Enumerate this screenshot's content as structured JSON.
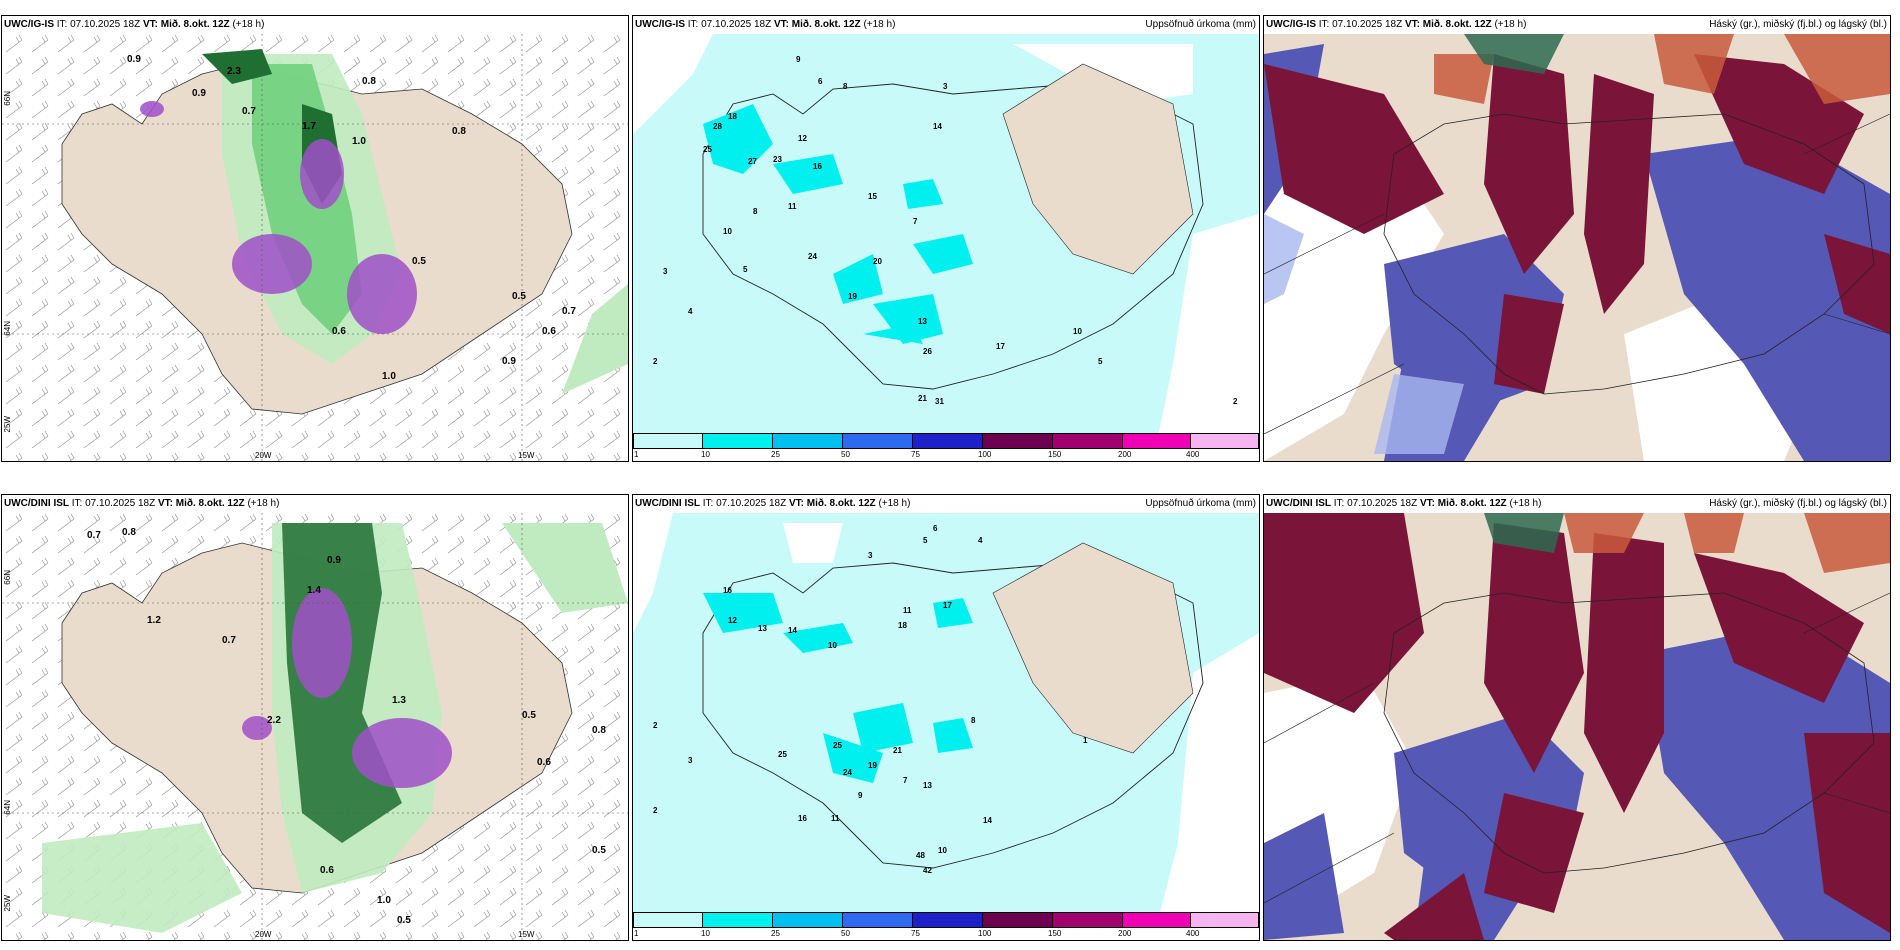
{
  "panels": {
    "tl": {
      "model": "UWC/IG-IS",
      "it": "IT: 07.10.2025 18Z",
      "vt_label": "VT:",
      "vt_value": "Mið. 8.okt. 12Z",
      "lead": "(+18 h)",
      "right": ""
    },
    "tc": {
      "model": "UWC/IG-IS",
      "it": "IT: 07.10.2025 18Z",
      "vt_label": "VT:",
      "vt_value": "Mið. 8.okt. 12Z",
      "lead": "(+18 h)",
      "right": "Uppsöfnuð úrkoma (mm)"
    },
    "tr": {
      "model": "UWC/IG-IS",
      "it": "IT: 07.10.2025 18Z",
      "vt_label": "VT:",
      "vt_value": "Mið. 8.okt. 12Z",
      "lead": "(+18 h)",
      "right": "Háský (gr.), miðský (fj.bl.) og lágský (bl.)"
    },
    "bl": {
      "model": "UWC/DINI ISL",
      "it": "IT: 07.10.2025 18Z",
      "vt_label": "VT:",
      "vt_value": "Mið. 8.okt. 12Z",
      "lead": "(+18 h)",
      "right": ""
    },
    "bc": {
      "model": "UWC/DINI ISL",
      "it": "IT: 07.10.2025 18Z",
      "vt_label": "VT:",
      "vt_value": "Mið. 8.okt. 12Z",
      "lead": "(+18 h)",
      "right": "Uppsöfnuð úrkoma (mm)"
    },
    "br": {
      "model": "UWC/DINI ISL",
      "it": "IT: 07.10.2025 18Z",
      "vt_label": "VT:",
      "vt_value": "Mið. 8.okt. 12Z",
      "lead": "(+18 h)",
      "right": "Háský (gr.), miðský (fj.bl.) og lágský (bl.)"
    }
  },
  "axes": {
    "lon20": "20W",
    "lon15": "15W",
    "lat66": "66N",
    "lat64": "64N",
    "lat25": "25W"
  },
  "colorbar": {
    "labels": [
      "1",
      "10",
      "25",
      "50",
      "75",
      "100",
      "150",
      "200",
      "400"
    ],
    "colors": [
      "#c8fafa",
      "#00f0f0",
      "#00c0f0",
      "#2e6af0",
      "#1e20c8",
      "#6e0050",
      "#a0006e",
      "#f000b4",
      "#f6b4f0"
    ]
  },
  "precip_top": [
    "9",
    "6",
    "8",
    "3",
    "28",
    "18",
    "25",
    "14",
    "12",
    "23",
    "16",
    "27",
    "11",
    "15",
    "20",
    "7",
    "24",
    "19",
    "13",
    "10",
    "8",
    "3",
    "4",
    "5",
    "2",
    "26",
    "21",
    "31",
    "17",
    "10",
    "5",
    "2"
  ],
  "precip_bottom": [
    "6",
    "4",
    "3",
    "16",
    "12",
    "13",
    "14",
    "10",
    "11",
    "18",
    "17",
    "25",
    "24",
    "19",
    "7",
    "21",
    "5",
    "2",
    "13",
    "14",
    "10",
    "16",
    "25",
    "11",
    "42",
    "48",
    "8",
    "9",
    "3",
    "1",
    "2"
  ],
  "wind_top_labels": [
    "0.9",
    "0.9",
    "0.7",
    "2.3",
    "1.7",
    "0.8",
    "1.0",
    "0.8",
    "0.6",
    "0.5",
    "0.9",
    "1.0",
    "0.7",
    "0.5",
    "0.6"
  ],
  "wind_bottom_labels": [
    "0.7",
    "0.8",
    "0.9",
    "1.4",
    "2.2",
    "1.3",
    "0.8",
    "0.5",
    "0.6",
    "0.7",
    "1.0",
    "0.5",
    "0.5",
    "0.6",
    "1.2"
  ],
  "colors": {
    "land": "#e9dccd",
    "cyan_bg": "#c8fafa",
    "cyan": "#00f0f0",
    "green_l": "#c0ebc0",
    "green_m": "#6ccf7a",
    "green_d": "#1f6e32",
    "purple": "#a050c8",
    "maroon": "#7a1438",
    "slate": "#5558b4",
    "lightblue": "#a8b8f0",
    "rust": "#c85a3c"
  }
}
